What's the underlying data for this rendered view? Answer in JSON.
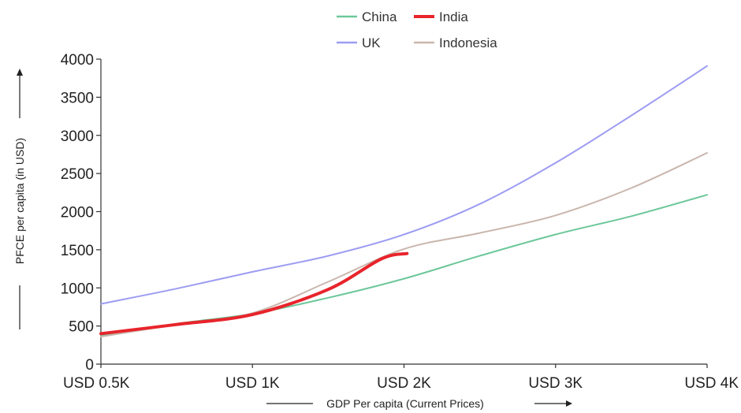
{
  "chart_data": {
    "type": "line",
    "xlabel": "GDP Per capita (Current Prices)",
    "ylabel": "PFCE per capita (in USD)",
    "x_ticks": [
      "USD 0.5K",
      "USD 1K",
      "USD 2K",
      "USD 3K",
      "USD 4K"
    ],
    "y_ticks": [
      "0",
      "500",
      "1000",
      "1500",
      "2000",
      "2500",
      "3000",
      "3500",
      "4000"
    ],
    "ylim": [
      0,
      4000
    ],
    "grid": false,
    "legend_position": "top",
    "series": [
      {
        "name": "China",
        "color": "#6cc79a",
        "width": 2,
        "points": [
          [
            0,
            370
          ],
          [
            0.5,
            530
          ],
          [
            1,
            660
          ],
          [
            1.5,
            870
          ],
          [
            2,
            1120
          ],
          [
            2.5,
            1420
          ],
          [
            3,
            1700
          ],
          [
            3.5,
            1940
          ],
          [
            4,
            2220
          ]
        ]
      },
      {
        "name": "India",
        "color": "#e8242b",
        "width": 4,
        "points": [
          [
            0,
            400
          ],
          [
            0.5,
            520
          ],
          [
            1,
            650
          ],
          [
            1.5,
            980
          ],
          [
            1.85,
            1380
          ],
          [
            2.02,
            1450
          ]
        ]
      },
      {
        "name": "UK",
        "color": "#9d9cf2",
        "width": 2,
        "points": [
          [
            0,
            790
          ],
          [
            0.5,
            990
          ],
          [
            1,
            1210
          ],
          [
            1.5,
            1420
          ],
          [
            2,
            1700
          ],
          [
            2.5,
            2100
          ],
          [
            3,
            2640
          ],
          [
            3.5,
            3260
          ],
          [
            4,
            3910
          ]
        ]
      },
      {
        "name": "Indonesia",
        "color": "#c9b6ad",
        "width": 2,
        "points": [
          [
            0,
            360
          ],
          [
            0.5,
            520
          ],
          [
            1,
            670
          ],
          [
            1.5,
            1080
          ],
          [
            2,
            1510
          ],
          [
            2.5,
            1720
          ],
          [
            3,
            1950
          ],
          [
            3.5,
            2310
          ],
          [
            4,
            2770
          ]
        ]
      }
    ]
  }
}
